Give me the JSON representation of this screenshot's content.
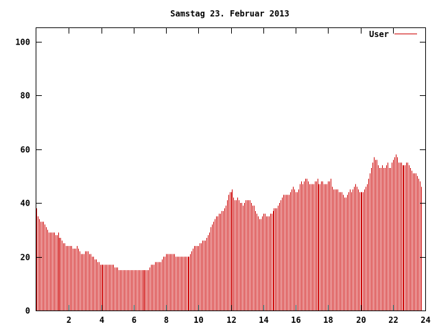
{
  "chart_data": {
    "type": "bar",
    "title": "Samstag 23. Februar 2013",
    "xlabel": "",
    "ylabel": "",
    "xlim": [
      0,
      24
    ],
    "ylim": [
      0,
      105
    ],
    "xticks": [
      2,
      4,
      6,
      8,
      10,
      12,
      14,
      16,
      18,
      20,
      22,
      24
    ],
    "yticks": [
      0,
      20,
      40,
      60,
      80,
      100
    ],
    "grid": false,
    "legend_position": "top-right",
    "interval_minutes": 5,
    "series": [
      {
        "name": "User",
        "color": "#cc0000",
        "values": [
          38,
          35,
          34,
          33,
          33,
          33,
          32,
          31,
          30,
          29,
          29,
          29,
          29,
          29,
          28,
          28,
          29,
          27,
          27,
          26,
          25,
          25,
          24,
          24,
          24,
          24,
          24,
          23,
          23,
          23,
          24,
          23,
          22,
          21,
          21,
          21,
          22,
          22,
          22,
          21,
          21,
          20,
          20,
          19,
          19,
          18,
          18,
          17,
          17,
          17,
          17,
          17,
          17,
          17,
          17,
          17,
          17,
          17,
          16,
          16,
          16,
          15,
          15,
          15,
          15,
          15,
          15,
          15,
          15,
          15,
          15,
          15,
          15,
          15,
          15,
          15,
          15,
          15,
          15,
          15,
          15,
          15,
          15,
          15,
          16,
          17,
          17,
          17,
          18,
          18,
          18,
          18,
          18,
          19,
          20,
          20,
          21,
          21,
          21,
          21,
          21,
          21,
          21,
          20,
          20,
          20,
          20,
          20,
          20,
          20,
          20,
          20,
          20,
          20,
          21,
          22,
          23,
          24,
          24,
          24,
          24,
          25,
          25,
          26,
          26,
          26,
          27,
          28,
          29,
          31,
          32,
          33,
          34,
          35,
          35,
          36,
          36,
          37,
          37,
          38,
          39,
          41,
          43,
          44,
          44,
          45,
          42,
          41,
          41,
          42,
          41,
          40,
          40,
          39,
          40,
          41,
          41,
          41,
          41,
          40,
          39,
          39,
          37,
          36,
          35,
          34,
          34,
          35,
          36,
          36,
          35,
          35,
          35,
          36,
          36,
          37,
          38,
          38,
          38,
          39,
          40,
          41,
          42,
          43,
          43,
          43,
          43,
          43,
          44,
          45,
          46,
          45,
          44,
          44,
          45,
          47,
          48,
          47,
          48,
          49,
          49,
          48,
          47,
          47,
          47,
          47,
          48,
          48,
          49,
          47,
          47,
          48,
          48,
          47,
          47,
          47,
          48,
          48,
          49,
          46,
          45,
          45,
          45,
          45,
          44,
          44,
          44,
          43,
          42,
          42,
          43,
          44,
          45,
          44,
          45,
          46,
          47,
          46,
          45,
          44,
          44,
          44,
          44,
          45,
          46,
          47,
          49,
          51,
          53,
          55,
          57,
          56,
          56,
          54,
          53,
          53,
          54,
          53,
          53,
          54,
          55,
          53,
          53,
          55,
          56,
          57,
          58,
          57,
          55,
          55,
          55,
          54,
          54,
          54,
          55,
          55,
          54,
          53,
          52,
          51,
          51,
          51,
          50,
          49,
          48,
          46
        ]
      }
    ]
  }
}
